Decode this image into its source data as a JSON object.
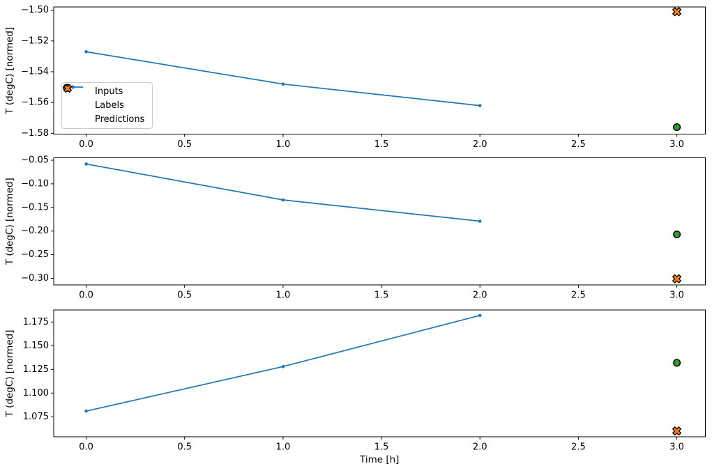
{
  "figure_title": "",
  "colors": {
    "inputs": "#1f77b4",
    "labels": "#2ca02c",
    "predictions": "#ff7f0e",
    "marker_edge": "#000000",
    "axes": "#000000",
    "legend_border": "#cccccc"
  },
  "legend": {
    "position": "upper left of first subplot",
    "items": [
      {
        "label": "Inputs",
        "marker": "line-dot",
        "color": "#1f77b4"
      },
      {
        "label": "Labels",
        "marker": "circle",
        "color": "#2ca02c"
      },
      {
        "label": "Predictions",
        "marker": "x-cross",
        "color": "#ff7f0e"
      }
    ]
  },
  "chart_data": [
    {
      "type": "line",
      "title": "",
      "xlabel": "",
      "ylabel": "T (degC) [normed]",
      "xlim": [
        -0.165,
        3.145
      ],
      "ylim": [
        -1.5805,
        -1.4979
      ],
      "grid": false,
      "xticks": {
        "values": [
          0.0,
          0.5,
          1.0,
          1.5,
          2.0,
          2.5,
          3.0
        ],
        "labels": [
          "0.0",
          "0.5",
          "1.0",
          "1.5",
          "2.0",
          "2.5",
          "3.0"
        ]
      },
      "yticks": {
        "values": [
          -1.58,
          -1.56,
          -1.54,
          -1.52,
          -1.5
        ],
        "labels": [
          "−1.58",
          "−1.56",
          "−1.54",
          "−1.52",
          "−1.50"
        ]
      },
      "series": [
        {
          "name": "Inputs",
          "type": "line",
          "marker": "dot",
          "color": "#1f77b4",
          "x": [
            0,
            1,
            2
          ],
          "y": [
            -1.527,
            -1.548,
            -1.562
          ]
        },
        {
          "name": "Labels",
          "type": "scatter",
          "marker": "circle",
          "color": "#2ca02c",
          "edge": "#000000",
          "x": [
            3
          ],
          "y": [
            -1.576
          ]
        },
        {
          "name": "Predictions",
          "type": "scatter",
          "marker": "X",
          "color": "#ff7f0e",
          "edge": "#000000",
          "x": [
            3
          ],
          "y": [
            -1.501
          ]
        }
      ]
    },
    {
      "type": "line",
      "title": "",
      "xlabel": "",
      "ylabel": "T (degC) [normed]",
      "xlim": [
        -0.165,
        3.145
      ],
      "ylim": [
        -0.314,
        -0.0448
      ],
      "grid": false,
      "xticks": {
        "values": [
          0.0,
          0.5,
          1.0,
          1.5,
          2.0,
          2.5,
          3.0
        ],
        "labels": [
          "0.0",
          "0.5",
          "1.0",
          "1.5",
          "2.0",
          "2.5",
          "3.0"
        ]
      },
      "yticks": {
        "values": [
          -0.3,
          -0.25,
          -0.2,
          -0.15,
          -0.1,
          -0.05
        ],
        "labels": [
          "−0.30",
          "−0.25",
          "−0.20",
          "−0.15",
          "−0.10",
          "−0.05"
        ]
      },
      "series": [
        {
          "name": "Inputs",
          "type": "line",
          "marker": "dot",
          "color": "#1f77b4",
          "x": [
            0,
            1,
            2
          ],
          "y": [
            -0.058,
            -0.134,
            -0.179
          ]
        },
        {
          "name": "Labels",
          "type": "scatter",
          "marker": "circle",
          "color": "#2ca02c",
          "edge": "#000000",
          "x": [
            3
          ],
          "y": [
            -0.207
          ]
        },
        {
          "name": "Predictions",
          "type": "scatter",
          "marker": "X",
          "color": "#ff7f0e",
          "edge": "#000000",
          "x": [
            3
          ],
          "y": [
            -0.301
          ]
        }
      ]
    },
    {
      "type": "line",
      "title": "",
      "xlabel": "Time [h]",
      "ylabel": "T (degC) [normed]",
      "xlim": [
        -0.165,
        3.145
      ],
      "ylim": [
        1.0539,
        1.1877
      ],
      "grid": false,
      "xticks": {
        "values": [
          0.0,
          0.5,
          1.0,
          1.5,
          2.0,
          2.5,
          3.0
        ],
        "labels": [
          "0.0",
          "0.5",
          "1.0",
          "1.5",
          "2.0",
          "2.5",
          "3.0"
        ]
      },
      "yticks": {
        "values": [
          1.075,
          1.1,
          1.125,
          1.15,
          1.175
        ],
        "labels": [
          "1.075",
          "1.100",
          "1.125",
          "1.150",
          "1.175"
        ]
      },
      "series": [
        {
          "name": "Inputs",
          "type": "line",
          "marker": "dot",
          "color": "#1f77b4",
          "x": [
            0,
            1,
            2
          ],
          "y": [
            1.081,
            1.128,
            1.182
          ]
        },
        {
          "name": "Labels",
          "type": "scatter",
          "marker": "circle",
          "color": "#2ca02c",
          "edge": "#000000",
          "x": [
            3
          ],
          "y": [
            1.132
          ]
        },
        {
          "name": "Predictions",
          "type": "scatter",
          "marker": "X",
          "color": "#ff7f0e",
          "edge": "#000000",
          "x": [
            3
          ],
          "y": [
            1.06
          ]
        }
      ]
    }
  ]
}
